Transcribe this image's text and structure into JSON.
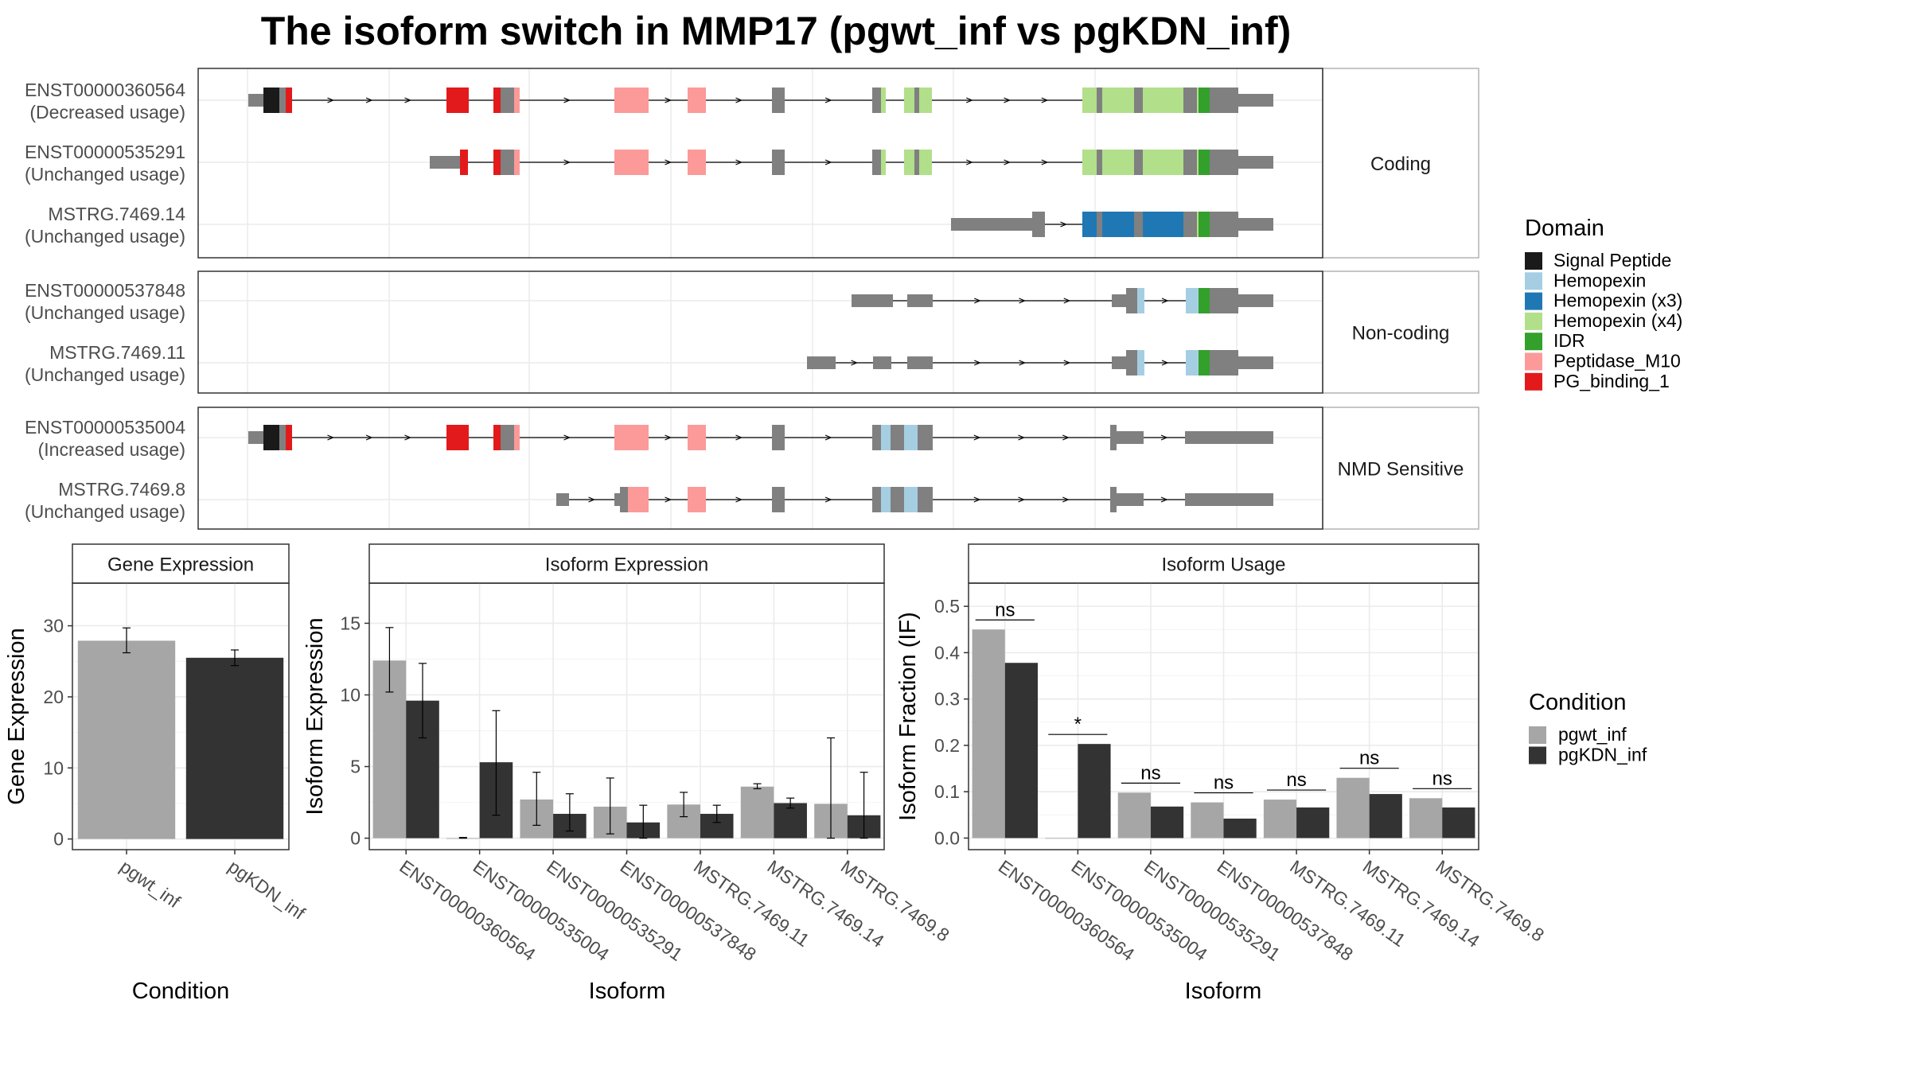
{
  "title": "The isoform switch in MMP17 (pgwt_inf vs pgKDN_inf)",
  "domain_legend": {
    "title": "Domain",
    "items": [
      {
        "name": "Signal Peptide",
        "color": "#1a1a1a"
      },
      {
        "name": "Hemopexin",
        "color": "#a6cee3"
      },
      {
        "name": "Hemopexin (x3)",
        "color": "#1f78b4"
      },
      {
        "name": "Hemopexin (x4)",
        "color": "#b2df8a"
      },
      {
        "name": "IDR",
        "color": "#33a02c"
      },
      {
        "name": "Peptidase_M10",
        "color": "#fb9a99"
      },
      {
        "name": "PG_binding_1",
        "color": "#e31a1c"
      }
    ]
  },
  "condition_legend": {
    "title": "Condition",
    "items": [
      {
        "name": "pgwt_inf",
        "color": "#a6a6a6"
      },
      {
        "name": "pgKDN_inf",
        "color": "#333333"
      }
    ]
  },
  "structure_panels": [
    {
      "label": "Coding",
      "transcripts": [
        {
          "id": "ENST00000360564",
          "usage": "(Decreased usage)"
        },
        {
          "id": "ENST00000535291",
          "usage": "(Unchanged usage)"
        },
        {
          "id": "MSTRG.7469.14",
          "usage": "(Unchanged usage)"
        }
      ]
    },
    {
      "label": "Non-coding",
      "transcripts": [
        {
          "id": "ENST00000537848",
          "usage": "(Unchanged usage)"
        },
        {
          "id": "MSTRG.7469.11",
          "usage": "(Unchanged usage)"
        }
      ]
    },
    {
      "label": "NMD Sensitive",
      "transcripts": [
        {
          "id": "ENST00000535004",
          "usage": "(Increased usage)"
        },
        {
          "id": "MSTRG.7469.8",
          "usage": "(Unchanged usage)"
        }
      ]
    }
  ],
  "chart_data": [
    {
      "type": "bar",
      "title": "Gene Expression",
      "xlabel": "Condition",
      "ylabel": "Gene Expression",
      "ylim": [
        -1.5,
        36
      ],
      "yticks": [
        0,
        10,
        20,
        30
      ],
      "categories": [
        "pgwt_inf",
        "pgKDN_inf"
      ],
      "values": [
        27.9,
        25.5
      ],
      "err_low": [
        26.2,
        24.4
      ],
      "err_high": [
        29.7,
        26.6
      ],
      "colors": [
        "#a6a6a6",
        "#333333"
      ],
      "grid": true
    },
    {
      "type": "bar",
      "title": "Isoform Expression",
      "xlabel": "Isoform",
      "ylabel": "Isoform Expression",
      "ylim": [
        -0.8,
        17.8
      ],
      "yticks": [
        0,
        5,
        10,
        15
      ],
      "categories": [
        "ENST00000360564",
        "ENST00000535004",
        "ENST00000535291",
        "ENST00000537848",
        "MSTRG.7469.11",
        "MSTRG.7469.14",
        "MSTRG.7469.8"
      ],
      "series": [
        {
          "name": "pgwt_inf",
          "color": "#a6a6a6",
          "values": [
            12.4,
            0.0,
            2.7,
            2.2,
            2.35,
            3.6,
            2.4
          ],
          "err_low": [
            10.2,
            0.0,
            0.9,
            0.3,
            1.5,
            3.45,
            0.0
          ],
          "err_high": [
            14.7,
            0.05,
            4.6,
            4.2,
            3.2,
            3.8,
            7.0
          ]
        },
        {
          "name": "pgKDN_inf",
          "color": "#333333",
          "values": [
            9.6,
            5.3,
            1.7,
            1.1,
            1.7,
            2.45,
            1.6
          ],
          "err_low": [
            7.0,
            1.6,
            0.5,
            0.0,
            1.1,
            2.1,
            0.0
          ],
          "err_high": [
            12.2,
            8.9,
            3.1,
            2.3,
            2.3,
            2.8,
            4.6
          ]
        }
      ],
      "grid": true
    },
    {
      "type": "bar",
      "title": "Isoform Usage",
      "xlabel": "Isoform",
      "ylabel": "Isoform Fraction (IF)",
      "ylim": [
        -0.025,
        0.55
      ],
      "yticks": [
        0.0,
        0.1,
        0.2,
        0.3,
        0.4,
        0.5
      ],
      "ytick_labels": [
        "0.0",
        "0.1",
        "0.2",
        "0.3",
        "0.4",
        "0.5"
      ],
      "categories": [
        "ENST00000360564",
        "ENST00000535004",
        "ENST00000535291",
        "ENST00000537848",
        "MSTRG.7469.11",
        "MSTRG.7469.14",
        "MSTRG.7469.8"
      ],
      "series": [
        {
          "name": "pgwt_inf",
          "color": "#a6a6a6",
          "values": [
            0.45,
            0.0,
            0.098,
            0.077,
            0.083,
            0.13,
            0.086
          ]
        },
        {
          "name": "pgKDN_inf",
          "color": "#333333",
          "values": [
            0.378,
            0.203,
            0.068,
            0.042,
            0.066,
            0.095,
            0.066
          ]
        }
      ],
      "significance": [
        "ns",
        "*",
        "ns",
        "ns",
        "ns",
        "ns",
        "ns"
      ],
      "grid": true
    }
  ]
}
